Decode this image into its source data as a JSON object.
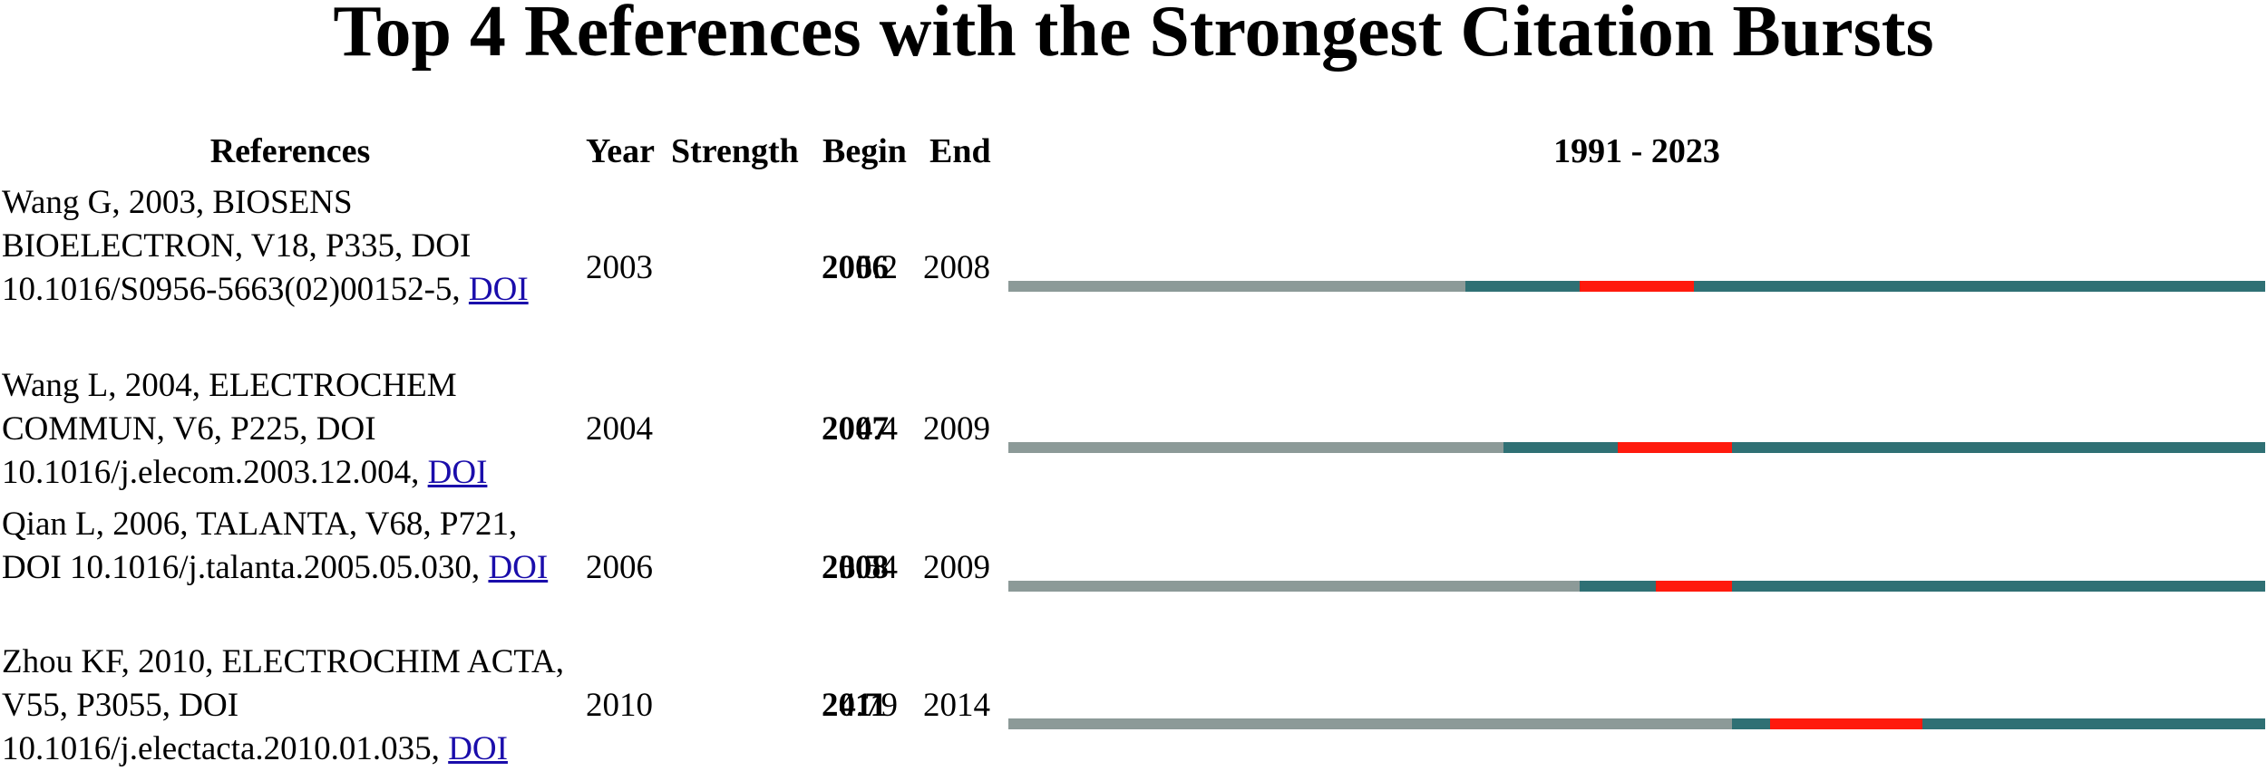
{
  "title": "Top 4 References with the Strongest Citation Bursts",
  "headers": {
    "references": "References",
    "year": "Year",
    "strength": "Strength",
    "begin": "Begin",
    "end": "End",
    "range": "1991 - 2023"
  },
  "colors": {
    "inactive": "#8c9a98",
    "active": "#2f7074",
    "burst": "#ff1a0d",
    "link": "#1a0dab"
  },
  "rows": [
    {
      "reference": "Wang G, 2003, BIOSENS BIOELECTRON, V18, P335, DOI 10.1016/S0956-5663(02)00152-5,",
      "link": "DOI",
      "year": "2003",
      "strength": "5.2",
      "begin": "2006",
      "end": "2008"
    },
    {
      "reference": "Wang L, 2004, ELECTROCHEM COMMUN, V6, P225, DOI 10.1016/j.elecom.2003.12.004,",
      "link": "DOI",
      "year": "2004",
      "strength": "4.4",
      "begin": "2007",
      "end": "2009"
    },
    {
      "reference": "Qian L, 2006, TALANTA, V68, P721, DOI 10.1016/j.talanta.2005.05.030,",
      "link": "DOI",
      "year": "2006",
      "strength": "3.54",
      "begin": "2008",
      "end": "2009"
    },
    {
      "reference": "Zhou KF, 2010, ELECTROCHIM ACTA, V55, P3055, DOI 10.1016/j.electacta.2010.01.035,",
      "link": "DOI",
      "year": "2010",
      "strength": "4.79",
      "begin": "2011",
      "end": "2014"
    }
  ],
  "chart_data": {
    "type": "table",
    "title": "Top 4 References with the Strongest Citation Bursts",
    "timeline_range": [
      1991,
      2023
    ],
    "columns": [
      "References",
      "Year",
      "Strength",
      "Begin",
      "End",
      "1991 - 2023"
    ],
    "series": [
      {
        "reference": "Wang G, 2003, BIOSENS BIOELECTRON, V18, P335, DOI 10.1016/S0956-5663(02)00152-5",
        "year": 2003,
        "strength": 5.2,
        "begin": 2006,
        "end": 2008
      },
      {
        "reference": "Wang L, 2004, ELECTROCHEM COMMUN, V6, P225, DOI 10.1016/j.elecom.2003.12.004",
        "year": 2004,
        "strength": 4.4,
        "begin": 2007,
        "end": 2009
      },
      {
        "reference": "Qian L, 2006, TALANTA, V68, P721, DOI 10.1016/j.talanta.2005.05.030",
        "year": 2006,
        "strength": 3.54,
        "begin": 2008,
        "end": 2009
      },
      {
        "reference": "Zhou KF, 2010, ELECTROCHIM ACTA, V55, P3055, DOI 10.1016/j.electacta.2010.01.035",
        "year": 2010,
        "strength": 4.79,
        "begin": 2011,
        "end": 2014
      }
    ]
  }
}
